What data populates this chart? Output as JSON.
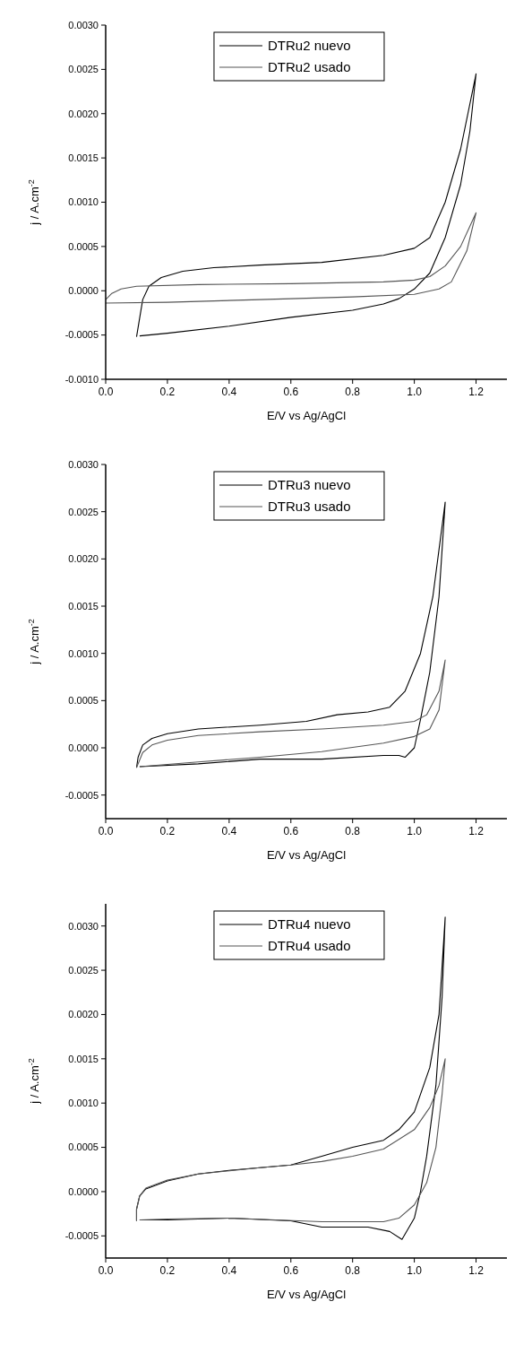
{
  "chart_data": [
    {
      "type": "line",
      "xlabel": "E/V  vs  Ag/AgCl",
      "ylabel": "j / A.cm$^{-2}$",
      "legend": "top",
      "marker": "none",
      "line_style": "solid",
      "grid": false,
      "xlim": [
        0,
        1.3
      ],
      "xticks": [
        {
          "value": 0,
          "label": "0.0"
        },
        {
          "value": 0.2,
          "label": "0.2"
        },
        {
          "value": 0.4,
          "label": "0.4"
        },
        {
          "value": 0.6,
          "label": "0.6"
        },
        {
          "value": 0.8,
          "label": "0.8"
        },
        {
          "value": 1,
          "label": "1.0"
        },
        {
          "value": 1.2,
          "label": "1.2"
        }
      ],
      "ylim": [
        -0.001,
        0.003
      ],
      "yticks": [
        {
          "value": -0.001,
          "label": "-0.0010"
        },
        {
          "value": -0.0005,
          "label": "-0.0005"
        },
        {
          "value": 0,
          "label": "0.0000"
        },
        {
          "value": 0.0005,
          "label": "0.0005"
        },
        {
          "value": 0.001,
          "label": "0.0010"
        },
        {
          "value": 0.0015,
          "label": "0.0015"
        },
        {
          "value": 0.002,
          "label": "0.0020"
        },
        {
          "value": 0.0025,
          "label": "0.0025"
        },
        {
          "value": 0.003,
          "label": "0.0030"
        }
      ],
      "series": [
        {
          "name": "DTRu2 nuevo",
          "color": "#000000",
          "x": [
            0.1,
            0.12,
            0.14,
            0.18,
            0.25,
            0.35,
            0.5,
            0.7,
            0.9,
            1.0,
            1.05,
            1.1,
            1.15,
            1.2,
            1.18,
            1.15,
            1.1,
            1.05,
            1.0,
            0.95,
            0.9,
            0.8,
            0.6,
            0.4,
            0.2,
            0.11
          ],
          "values": [
            -0.00052,
            -0.0001,
            5e-05,
            0.00015,
            0.00022,
            0.00026,
            0.00029,
            0.00032,
            0.0004,
            0.00048,
            0.0006,
            0.001,
            0.0016,
            0.00245,
            0.0018,
            0.0012,
            0.0006,
            0.0002,
            2e-05,
            -9e-05,
            -0.00015,
            -0.00022,
            -0.0003,
            -0.0004,
            -0.00048,
            -0.00051
          ]
        },
        {
          "name": "DTRu2 usado",
          "color": "#555555",
          "x": [
            0,
            0.02,
            0.05,
            0.1,
            0.3,
            0.6,
            0.9,
            1.0,
            1.05,
            1.1,
            1.15,
            1.2,
            1.17,
            1.12,
            1.08,
            1.0,
            0.8,
            0.5,
            0.2,
            0
          ],
          "values": [
            -0.0001,
            -3e-05,
            2e-05,
            5e-05,
            7e-05,
            8e-05,
            0.0001,
            0.00012,
            0.00016,
            0.00028,
            0.0005,
            0.00088,
            0.00045,
            0.0001,
            2e-05,
            -4e-05,
            -7e-05,
            -0.0001,
            -0.00013,
            -0.00014
          ]
        }
      ]
    },
    {
      "type": "line",
      "xlabel": "E/V  vs  Ag/AgCl",
      "ylabel": "j / A.cm$^{-2}$",
      "legend": "top",
      "marker": "none",
      "line_style": "solid",
      "grid": false,
      "xlim": [
        0,
        1.3
      ],
      "xticks": [
        {
          "value": 0,
          "label": "0.0"
        },
        {
          "value": 0.2,
          "label": "0.2"
        },
        {
          "value": 0.4,
          "label": "0.4"
        },
        {
          "value": 0.6,
          "label": "0.6"
        },
        {
          "value": 0.8,
          "label": "0.8"
        },
        {
          "value": 1,
          "label": "1.0"
        },
        {
          "value": 1.2,
          "label": "1.2"
        }
      ],
      "ylim": [
        -0.00075,
        0.003
      ],
      "yticks": [
        {
          "value": -0.0005,
          "label": "-0.0005"
        },
        {
          "value": 0,
          "label": "0.0000"
        },
        {
          "value": 0.0005,
          "label": "0.0005"
        },
        {
          "value": 0.001,
          "label": "0.0010"
        },
        {
          "value": 0.0015,
          "label": "0.0015"
        },
        {
          "value": 0.002,
          "label": "0.0020"
        },
        {
          "value": 0.0025,
          "label": "0.0025"
        },
        {
          "value": 0.003,
          "label": "0.0030"
        }
      ],
      "series": [
        {
          "name": "DTRu3 nuevo",
          "color": "#000000",
          "x": [
            0.1,
            0.105,
            0.12,
            0.15,
            0.2,
            0.3,
            0.5,
            0.65,
            0.75,
            0.85,
            0.92,
            0.97,
            1.02,
            1.06,
            1.1,
            1.08,
            1.05,
            1.02,
            1.0,
            0.97,
            0.95,
            0.9,
            0.7,
            0.5,
            0.3,
            0.11
          ],
          "values": [
            -0.00021,
            -0.0001,
            3e-05,
            0.0001,
            0.00015,
            0.0002,
            0.00024,
            0.00028,
            0.00035,
            0.00038,
            0.00043,
            0.0006,
            0.001,
            0.0016,
            0.0026,
            0.0016,
            0.0008,
            0.0003,
            0,
            -0.0001,
            -8e-05,
            -8e-05,
            -0.00012,
            -0.00012,
            -0.00017,
            -0.0002
          ]
        },
        {
          "name": "DTRu3 usado",
          "color": "#555555",
          "x": [
            0.1,
            0.12,
            0.15,
            0.2,
            0.3,
            0.5,
            0.7,
            0.9,
            1.0,
            1.04,
            1.08,
            1.1,
            1.08,
            1.05,
            1.0,
            0.9,
            0.7,
            0.5,
            0.3,
            0.11
          ],
          "values": [
            -0.00021,
            -5e-05,
            3e-05,
            8e-05,
            0.00013,
            0.00017,
            0.0002,
            0.00024,
            0.00028,
            0.00035,
            0.0006,
            0.00093,
            0.0004,
            0.0002,
            0.00012,
            5e-05,
            -4e-05,
            -0.0001,
            -0.00015,
            -0.0002
          ]
        }
      ]
    },
    {
      "type": "line",
      "xlabel": "E/V  vs  Ag/AgCl",
      "ylabel": "j / A.cm$^{-2}$",
      "legend": "top",
      "marker": "none",
      "line_style": "solid",
      "grid": false,
      "xlim": [
        0,
        1.3
      ],
      "xticks": [
        {
          "value": 0,
          "label": "0.0"
        },
        {
          "value": 0.2,
          "label": "0.2"
        },
        {
          "value": 0.4,
          "label": "0.4"
        },
        {
          "value": 0.6,
          "label": "0.6"
        },
        {
          "value": 0.8,
          "label": "0.8"
        },
        {
          "value": 1,
          "label": "1.0"
        },
        {
          "value": 1.2,
          "label": "1.2"
        }
      ],
      "ylim": [
        -0.00075,
        0.00325
      ],
      "yticks": [
        {
          "value": -0.0005,
          "label": "-0.0005"
        },
        {
          "value": 0,
          "label": "0.0000"
        },
        {
          "value": 0.0005,
          "label": "0.0005"
        },
        {
          "value": 0.001,
          "label": "0.0010"
        },
        {
          "value": 0.0015,
          "label": "0.0015"
        },
        {
          "value": 0.002,
          "label": "0.0020"
        },
        {
          "value": 0.0025,
          "label": "0.0025"
        },
        {
          "value": 0.003,
          "label": "0.0030"
        }
      ],
      "series": [
        {
          "name": "DTRu4 nuevo",
          "color": "#000000",
          "x": [
            0.1,
            0.1,
            0.11,
            0.13,
            0.2,
            0.3,
            0.4,
            0.5,
            0.6,
            0.7,
            0.8,
            0.9,
            0.95,
            1.0,
            1.05,
            1.08,
            1.1,
            1.09,
            1.07,
            1.04,
            1.02,
            1.0,
            0.96,
            0.92,
            0.85,
            0.7,
            0.6,
            0.4,
            0.2,
            0.11
          ],
          "values": [
            -0.00033,
            -0.0002,
            -5e-05,
            3e-05,
            0.00012,
            0.0002,
            0.00024,
            0.00027,
            0.0003,
            0.0004,
            0.0005,
            0.00058,
            0.0007,
            0.0009,
            0.0014,
            0.002,
            0.0031,
            0.0022,
            0.0012,
            0.0004,
            0,
            -0.0003,
            -0.00054,
            -0.00045,
            -0.0004,
            -0.0004,
            -0.00033,
            -0.0003,
            -0.00032,
            -0.00032
          ]
        },
        {
          "name": "DTRu4 usado",
          "color": "#555555",
          "x": [
            0.1,
            0.1,
            0.11,
            0.13,
            0.2,
            0.3,
            0.5,
            0.6,
            0.7,
            0.8,
            0.9,
            1.0,
            1.05,
            1.08,
            1.1,
            1.09,
            1.07,
            1.04,
            1.0,
            0.95,
            0.9,
            0.7,
            0.4,
            0.2,
            0.11
          ],
          "values": [
            -0.00033,
            -0.0002,
            -5e-05,
            4e-05,
            0.00013,
            0.0002,
            0.00027,
            0.0003,
            0.00034,
            0.0004,
            0.00048,
            0.0007,
            0.00095,
            0.0012,
            0.0015,
            0.0011,
            0.0005,
            0.0001,
            -0.00015,
            -0.0003,
            -0.00034,
            -0.00034,
            -0.0003,
            -0.00031,
            -0.00032
          ]
        }
      ]
    }
  ]
}
